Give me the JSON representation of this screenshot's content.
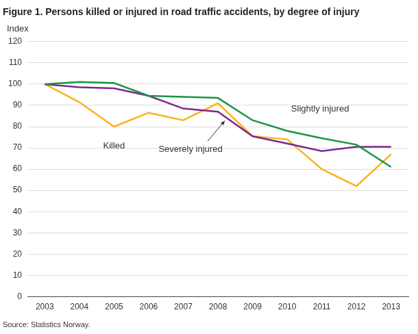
{
  "chart_data": {
    "type": "line",
    "title": "Figure 1. Persons killed or injured in road traffic accidents, by degree of injury",
    "ylabel": "Index",
    "source": "Source: Statistics Norway.",
    "categories": [
      "2003",
      "2004",
      "2005",
      "2006",
      "2007",
      "2008",
      "2009",
      "2010",
      "2011",
      "2012",
      "2013"
    ],
    "series": [
      {
        "name": "Slightly injured",
        "color": "#1a9641",
        "values": [
          100,
          101,
          100.5,
          94.5,
          94,
          93.5,
          83,
          78,
          74.5,
          71.5,
          61
        ]
      },
      {
        "name": "Severely injured",
        "color": "#7b2a8c",
        "values": [
          100,
          98.5,
          98,
          94.5,
          88.5,
          87,
          75.5,
          72,
          68.5,
          70.5,
          70.5
        ]
      },
      {
        "name": "Killed",
        "color": "#f9b41d",
        "values": [
          100,
          91.5,
          80,
          86.5,
          83,
          91,
          75.5,
          74,
          60,
          52,
          67
        ]
      }
    ],
    "ylim": [
      0,
      120
    ],
    "yticks": [
      0,
      10,
      20,
      30,
      40,
      50,
      60,
      70,
      80,
      90,
      100,
      110,
      120
    ],
    "grid": true,
    "legend": "none"
  }
}
